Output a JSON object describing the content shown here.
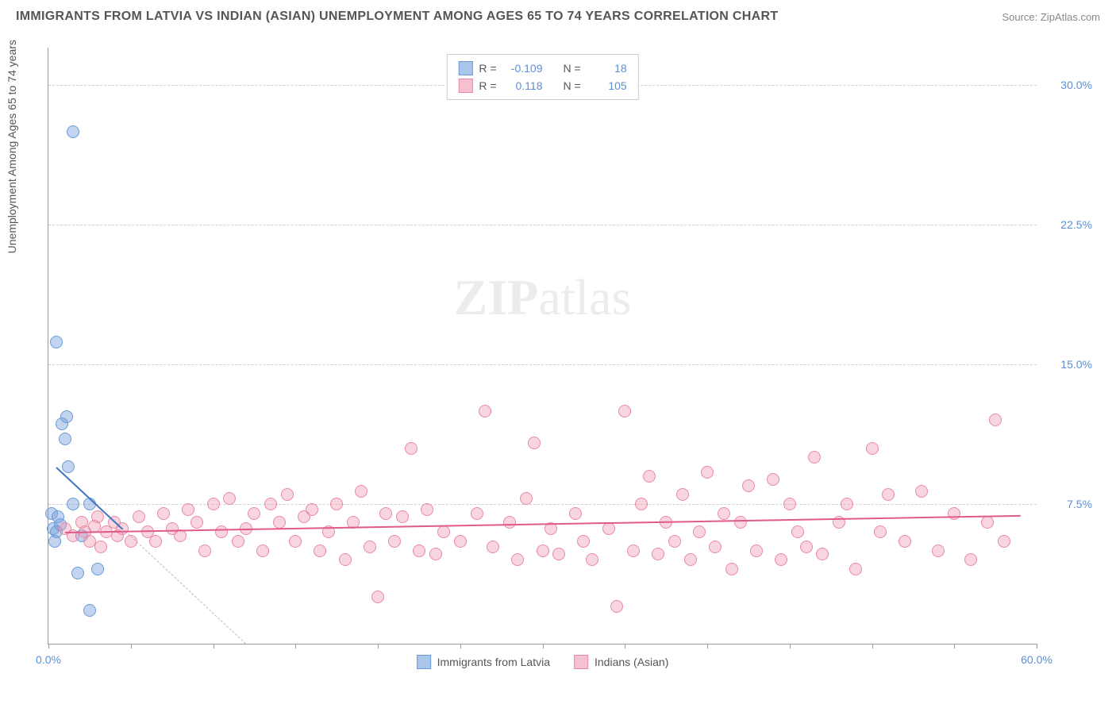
{
  "title": "IMMIGRANTS FROM LATVIA VS INDIAN (ASIAN) UNEMPLOYMENT AMONG AGES 65 TO 74 YEARS CORRELATION CHART",
  "source": "Source: ZipAtlas.com",
  "watermark_bold": "ZIP",
  "watermark_rest": "atlas",
  "y_axis_label": "Unemployment Among Ages 65 to 74 years",
  "chart": {
    "type": "scatter",
    "xlim": [
      0,
      60
    ],
    "ylim": [
      0,
      32
    ],
    "x_tick_step": 5,
    "x_tick_labels": {
      "0": "0.0%",
      "60": "60.0%"
    },
    "y_ticks": [
      7.5,
      15.0,
      22.5,
      30.0
    ],
    "y_tick_labels": [
      "7.5%",
      "15.0%",
      "22.5%",
      "30.0%"
    ],
    "grid_color": "#d0d0d0",
    "background_color": "#ffffff",
    "series": [
      {
        "name": "Immigrants from Latvia",
        "marker_color": "rgba(120,160,220,0.45)",
        "marker_border": "#6a9bd8",
        "swatch_fill": "#aac6ea",
        "swatch_border": "#6a9bd8",
        "r": "-0.109",
        "n": "18",
        "trend": {
          "x1": 0.5,
          "y1": 9.5,
          "x2": 4.5,
          "y2": 6.2,
          "color": "#3f73c4",
          "dash_extend_x": 12,
          "dash_extend_y": 0
        },
        "points": [
          [
            0.3,
            6.2
          ],
          [
            0.5,
            6.0
          ],
          [
            0.7,
            6.4
          ],
          [
            0.2,
            7.0
          ],
          [
            0.4,
            5.5
          ],
          [
            0.6,
            6.8
          ],
          [
            0.8,
            11.8
          ],
          [
            1.0,
            11.0
          ],
          [
            1.1,
            12.2
          ],
          [
            1.2,
            9.5
          ],
          [
            1.5,
            7.5
          ],
          [
            2.5,
            7.5
          ],
          [
            3.0,
            4.0
          ],
          [
            2.0,
            5.8
          ],
          [
            1.8,
            3.8
          ],
          [
            2.5,
            1.8
          ],
          [
            0.5,
            16.2
          ],
          [
            1.5,
            27.5
          ]
        ]
      },
      {
        "name": "Indians (Asian)",
        "marker_color": "rgba(240,150,175,0.40)",
        "marker_border": "#e88aa5",
        "swatch_fill": "#f5c0cf",
        "swatch_border": "#e88aa5",
        "r": "0.118",
        "n": "105",
        "trend": {
          "x1": 1,
          "y1": 6.0,
          "x2": 59,
          "y2": 6.9,
          "color": "#e05a8a"
        },
        "points": [
          [
            1,
            6.2
          ],
          [
            1.5,
            5.8
          ],
          [
            2,
            6.5
          ],
          [
            2.2,
            6.0
          ],
          [
            2.5,
            5.5
          ],
          [
            2.8,
            6.3
          ],
          [
            3,
            6.8
          ],
          [
            3.2,
            5.2
          ],
          [
            3.5,
            6.0
          ],
          [
            4,
            6.5
          ],
          [
            4.2,
            5.8
          ],
          [
            4.5,
            6.2
          ],
          [
            5,
            5.5
          ],
          [
            5.5,
            6.8
          ],
          [
            6,
            6.0
          ],
          [
            6.5,
            5.5
          ],
          [
            7,
            7.0
          ],
          [
            7.5,
            6.2
          ],
          [
            8,
            5.8
          ],
          [
            8.5,
            7.2
          ],
          [
            9,
            6.5
          ],
          [
            9.5,
            5.0
          ],
          [
            10,
            7.5
          ],
          [
            10.5,
            6.0
          ],
          [
            11,
            7.8
          ],
          [
            11.5,
            5.5
          ],
          [
            12,
            6.2
          ],
          [
            12.5,
            7.0
          ],
          [
            13,
            5.0
          ],
          [
            13.5,
            7.5
          ],
          [
            14,
            6.5
          ],
          [
            14.5,
            8.0
          ],
          [
            15,
            5.5
          ],
          [
            15.5,
            6.8
          ],
          [
            16,
            7.2
          ],
          [
            16.5,
            5.0
          ],
          [
            17,
            6.0
          ],
          [
            17.5,
            7.5
          ],
          [
            18,
            4.5
          ],
          [
            18.5,
            6.5
          ],
          [
            19,
            8.2
          ],
          [
            19.5,
            5.2
          ],
          [
            20,
            2.5
          ],
          [
            20.5,
            7.0
          ],
          [
            21,
            5.5
          ],
          [
            21.5,
            6.8
          ],
          [
            22,
            10.5
          ],
          [
            22.5,
            5.0
          ],
          [
            23,
            7.2
          ],
          [
            23.5,
            4.8
          ],
          [
            24,
            6.0
          ],
          [
            25,
            5.5
          ],
          [
            26,
            7.0
          ],
          [
            26.5,
            12.5
          ],
          [
            27,
            5.2
          ],
          [
            28,
            6.5
          ],
          [
            28.5,
            4.5
          ],
          [
            29,
            7.8
          ],
          [
            29.5,
            10.8
          ],
          [
            30,
            5.0
          ],
          [
            30.5,
            6.2
          ],
          [
            31,
            4.8
          ],
          [
            32,
            7.0
          ],
          [
            32.5,
            5.5
          ],
          [
            33,
            4.5
          ],
          [
            34,
            6.2
          ],
          [
            34.5,
            2.0
          ],
          [
            35,
            12.5
          ],
          [
            35.5,
            5.0
          ],
          [
            36,
            7.5
          ],
          [
            36.5,
            9.0
          ],
          [
            37,
            4.8
          ],
          [
            37.5,
            6.5
          ],
          [
            38,
            5.5
          ],
          [
            38.5,
            8.0
          ],
          [
            39,
            4.5
          ],
          [
            39.5,
            6.0
          ],
          [
            40,
            9.2
          ],
          [
            40.5,
            5.2
          ],
          [
            41,
            7.0
          ],
          [
            41.5,
            4.0
          ],
          [
            42,
            6.5
          ],
          [
            42.5,
            8.5
          ],
          [
            43,
            5.0
          ],
          [
            44,
            8.8
          ],
          [
            44.5,
            4.5
          ],
          [
            45,
            7.5
          ],
          [
            45.5,
            6.0
          ],
          [
            46,
            5.2
          ],
          [
            46.5,
            10.0
          ],
          [
            47,
            4.8
          ],
          [
            48,
            6.5
          ],
          [
            48.5,
            7.5
          ],
          [
            49,
            4.0
          ],
          [
            50,
            10.5
          ],
          [
            50.5,
            6.0
          ],
          [
            51,
            8.0
          ],
          [
            52,
            5.5
          ],
          [
            53,
            8.2
          ],
          [
            54,
            5.0
          ],
          [
            55,
            7.0
          ],
          [
            56,
            4.5
          ],
          [
            57,
            6.5
          ],
          [
            57.5,
            12.0
          ],
          [
            58,
            5.5
          ]
        ]
      }
    ]
  },
  "legend": {
    "r_label": "R =",
    "n_label": "N ="
  }
}
